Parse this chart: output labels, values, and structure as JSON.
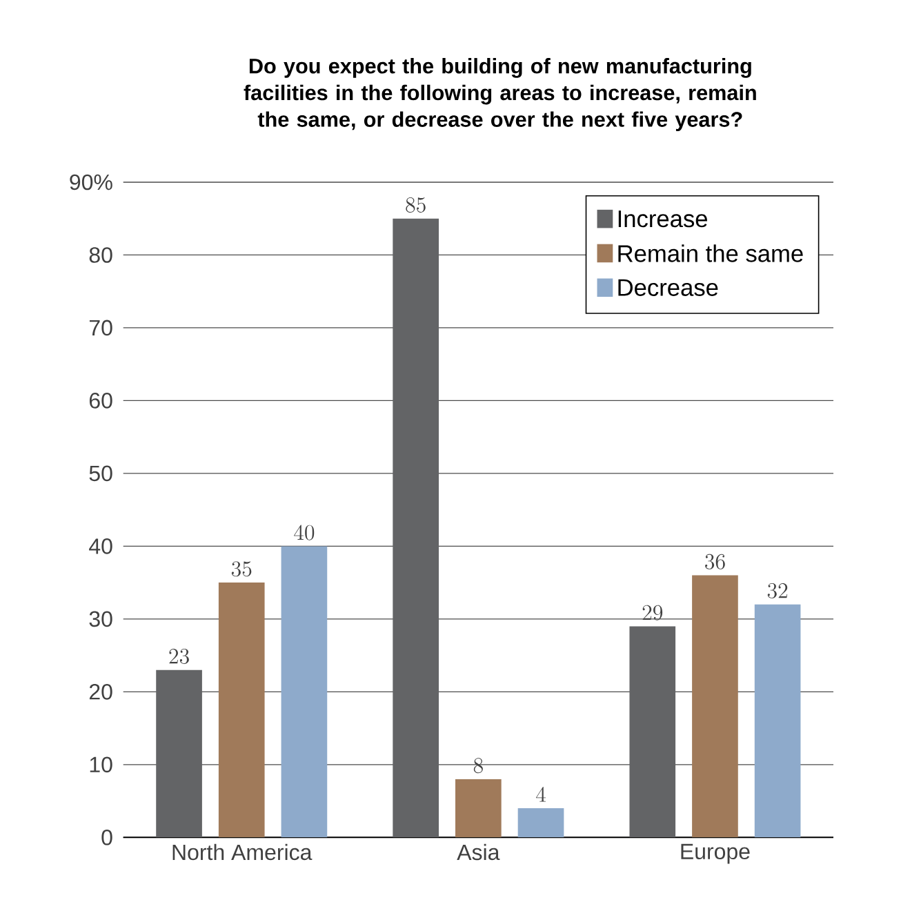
{
  "chart_data": {
    "type": "bar",
    "title": "Do you expect the building of new manufacturing facilities in the following areas to increase, remain the same, or decrease over the next five years?",
    "categories": [
      "North America",
      "Asia",
      "Europe"
    ],
    "series": [
      {
        "name": "Increase",
        "color": "#636466",
        "values": [
          23,
          85,
          29
        ]
      },
      {
        "name": "Remain the same",
        "color": "#a07a5a",
        "values": [
          35,
          8,
          36
        ]
      },
      {
        "name": "Decrease",
        "color": "#8eaacb",
        "values": [
          40,
          4,
          32
        ]
      }
    ],
    "ylim": [
      0,
      90
    ],
    "yticks": [
      0,
      10,
      20,
      30,
      40,
      50,
      60,
      70,
      80,
      {
        "value": 90,
        "label": "90%"
      }
    ],
    "grid": "y",
    "legend": "top right",
    "data_labels": true
  }
}
